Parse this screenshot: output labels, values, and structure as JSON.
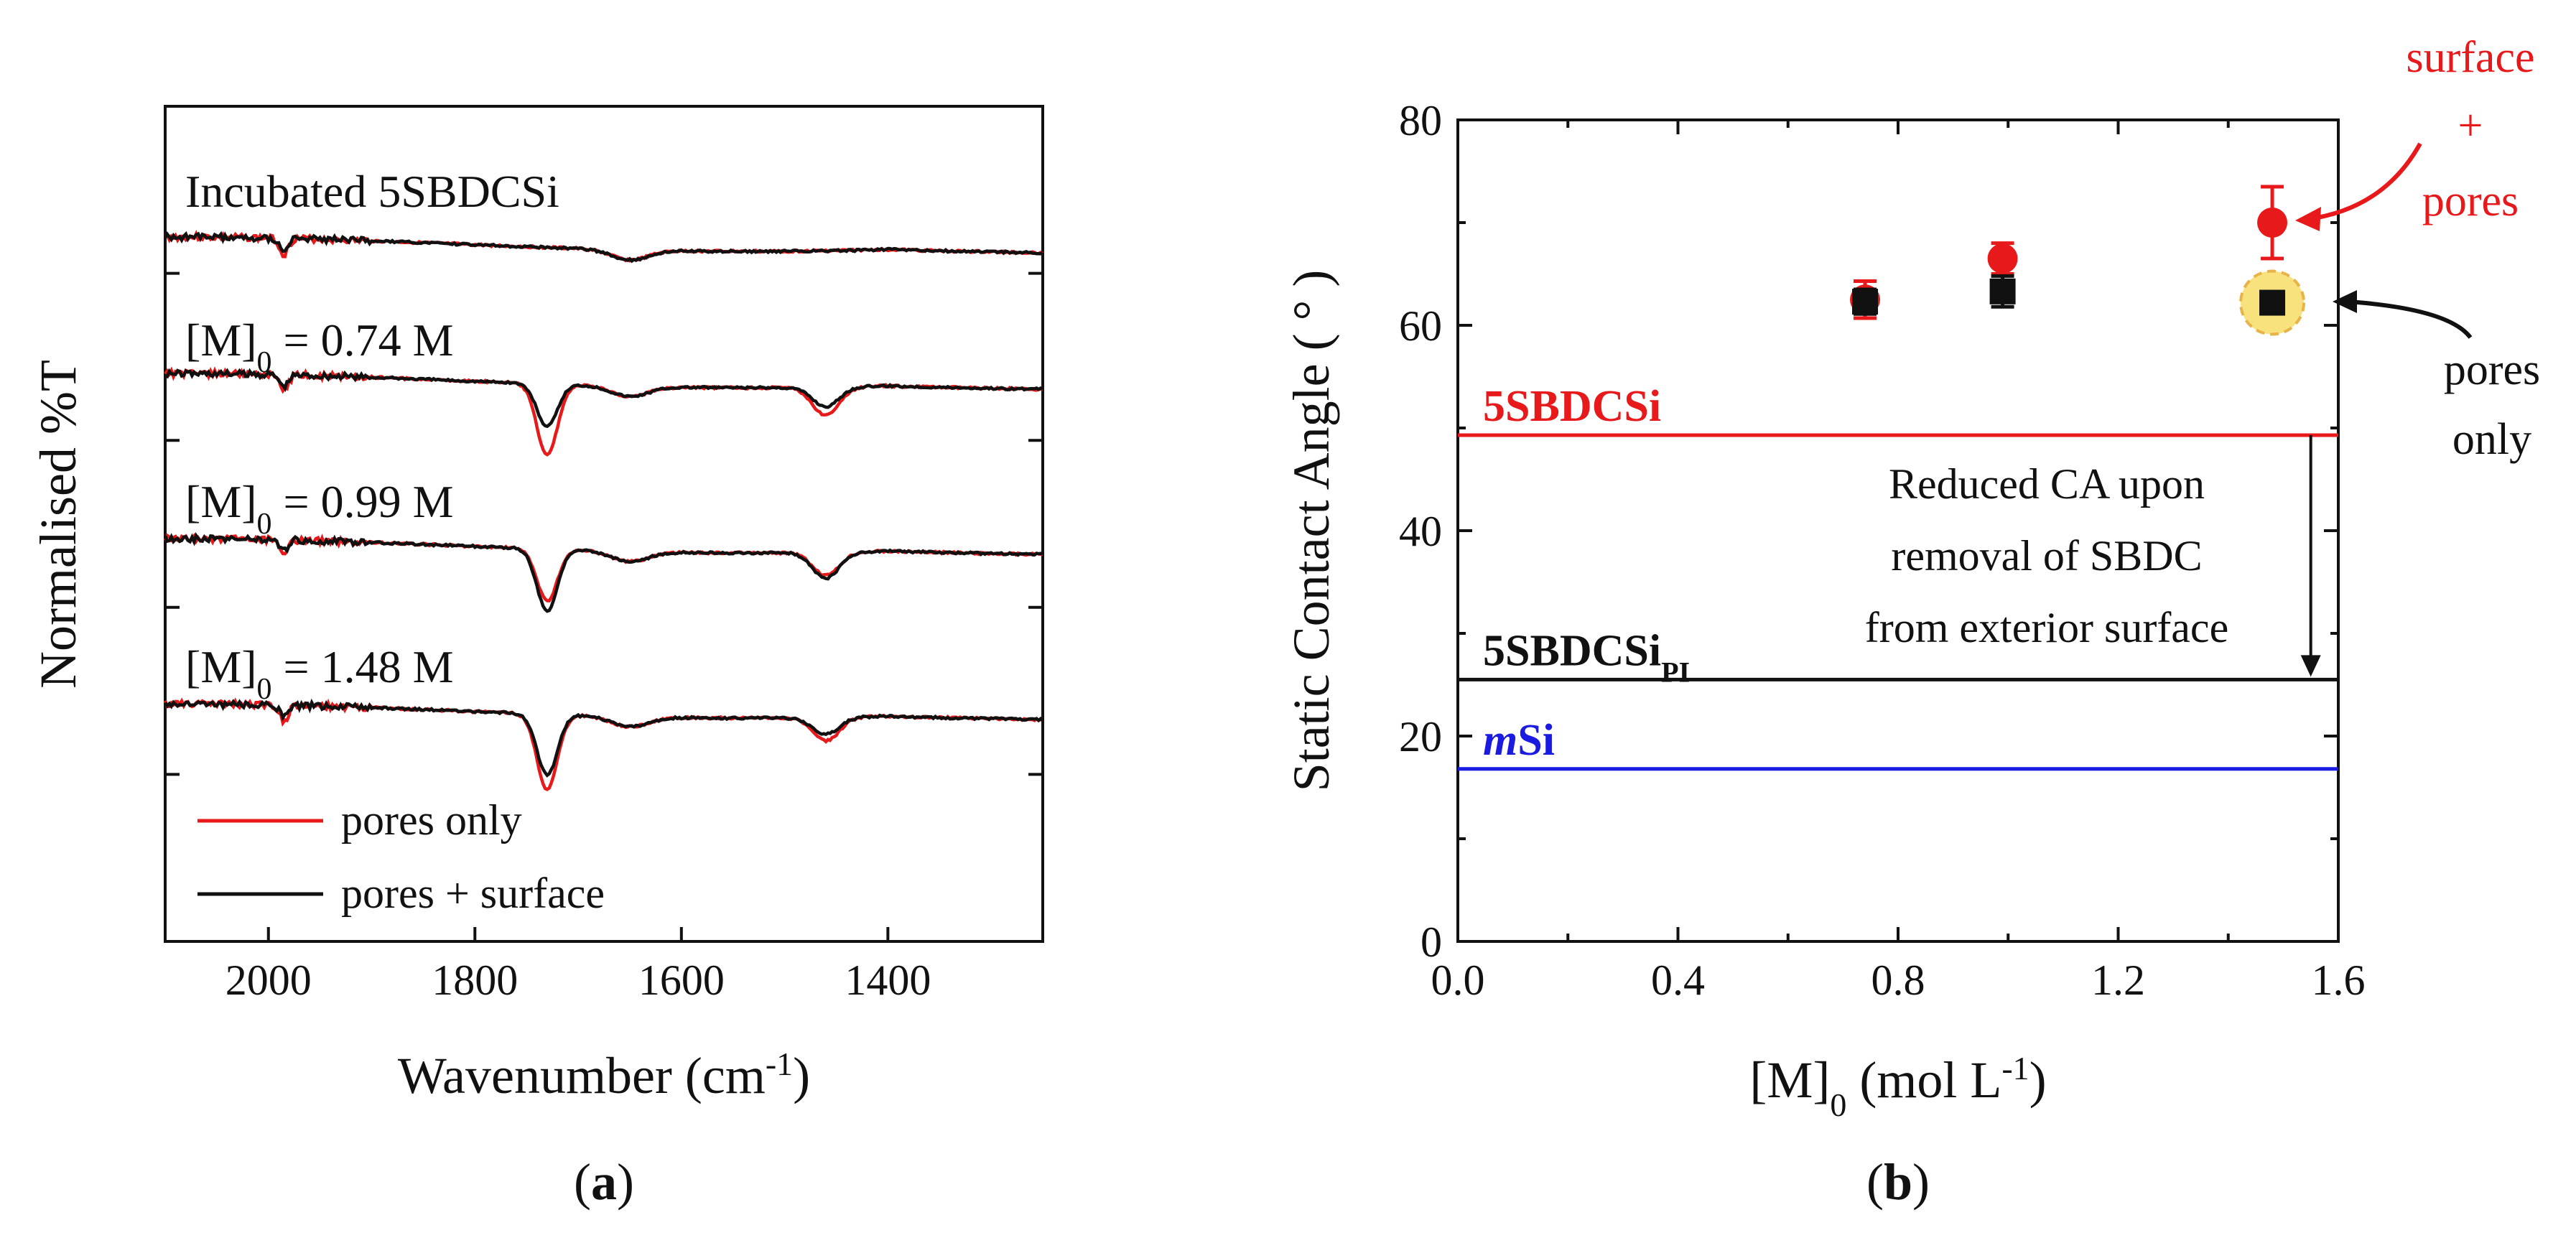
{
  "chart_data": [
    {
      "type": "line",
      "panel_label": "a",
      "xlabel": "Wavenumber (cm",
      "xlabel_sup": "-1",
      "xlabel_end": ")",
      "ylabel": "Normalised %T",
      "xlim": [
        2100,
        1250
      ],
      "x_ticks": [
        "2000",
        "1800",
        "1600",
        "1400"
      ],
      "legend": [
        {
          "label": "pores only",
          "color": "#e8191b"
        },
        {
          "label": "pores + surface",
          "color": "#111111"
        }
      ],
      "spectra": [
        {
          "label": "Incubated 5SBDCSi",
          "label_main": "Incubated 5SBDCSi",
          "label_sub": "",
          "label_rest": "",
          "peaks": []
        },
        {
          "label": "[M]0 = 0.74 M",
          "label_main": "[M]",
          "label_sub": "0",
          "label_rest": " = 0.74 M",
          "peaks": [
            {
              "x": 1730,
              "depth_red": 0.55,
              "depth_black": 0.33
            },
            {
              "x": 1460,
              "depth_red": 0.22,
              "depth_black": 0.15
            }
          ]
        },
        {
          "label": "[M]0 = 0.99 M",
          "label_main": "[M]",
          "label_sub": "0",
          "label_rest": " = 0.99 M",
          "peaks": [
            {
              "x": 1730,
              "depth_red": 0.4,
              "depth_black": 0.48
            },
            {
              "x": 1460,
              "depth_red": 0.18,
              "depth_black": 0.2
            }
          ]
        },
        {
          "label": "[M]0 = 1.48 M",
          "label_main": "[M]",
          "label_sub": "0",
          "label_rest": " = 1.48 M",
          "peaks": [
            {
              "x": 1730,
              "depth_red": 0.58,
              "depth_black": 0.47
            },
            {
              "x": 1460,
              "depth_red": 0.18,
              "depth_black": 0.13
            }
          ]
        }
      ]
    },
    {
      "type": "scatter",
      "panel_label": "b",
      "xlabel": "[M]",
      "xlabel_sub": "0",
      "xlabel_rest": " (mol L",
      "xlabel_sup": "-1",
      "xlabel_end": ")",
      "ylabel": "Static Contact Angle ( ° )",
      "xlim": [
        0.0,
        1.6
      ],
      "ylim": [
        0,
        80
      ],
      "x_ticks": [
        0.0,
        0.4,
        0.8,
        1.2,
        1.6
      ],
      "x_tick_labels": [
        "0.0",
        "0.4",
        "0.8",
        "1.2",
        "1.6"
      ],
      "y_ticks": [
        0,
        20,
        40,
        60,
        80
      ],
      "y_tick_labels": [
        "0",
        "20",
        "40",
        "60",
        "80"
      ],
      "series": [
        {
          "name": "surface + pores",
          "marker": "circle",
          "color": "#e8191b",
          "x": [
            0.74,
            0.99,
            1.48
          ],
          "y": [
            62.5,
            66.5,
            70.0
          ],
          "err": [
            1.8,
            1.5,
            3.5
          ]
        },
        {
          "name": "pores only",
          "marker": "square",
          "color": "#111111",
          "x": [
            0.74,
            0.99,
            1.48
          ],
          "y": [
            62.3,
            63.3,
            62.2
          ],
          "err": [
            1.2,
            1.5,
            0.8
          ]
        }
      ],
      "reference_lines": [
        {
          "name": "5SBDCSi",
          "label_main": "5SBDCSi",
          "label_sub": "",
          "italic_prefix": "",
          "y": 49.3,
          "color": "#e8191b"
        },
        {
          "name": "5SBDCSiPI",
          "label_main": "5SBDCSi",
          "label_sub": "PI",
          "italic_prefix": "",
          "y": 25.5,
          "color": "#111111"
        },
        {
          "name": "mSi",
          "label_main": "Si",
          "label_sub": "",
          "italic_prefix": "m",
          "y": 16.8,
          "color": "#1a1ae0"
        }
      ],
      "arrow": {
        "x": 1.55,
        "y_from": 49.3,
        "y_to": 25.5
      },
      "annotations": {
        "reduced_ca": [
          "Reduced CA upon",
          "removal of SBDC",
          "from exterior surface"
        ],
        "surface_pores": [
          "surface",
          "+",
          "pores"
        ],
        "pores_only": [
          "pores",
          "only"
        ]
      }
    }
  ]
}
